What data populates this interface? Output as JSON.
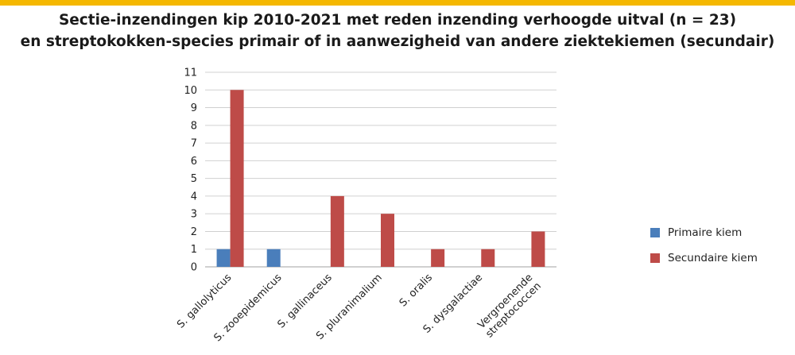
{
  "chart_data": {
    "type": "bar",
    "title": "Sectie-inzendingen kip 2010-2021 met reden inzending verhoogde uitval (n = 23)",
    "subtitle": "en streptokokken-species primair of in aanwezigheid van andere ziektekiemen (secundair)",
    "categories": [
      [
        "S. gallolyticus"
      ],
      [
        "S. zooepidemicus"
      ],
      [
        "S. gallinaceus"
      ],
      [
        "S. pluranimalium"
      ],
      [
        "S. oralis"
      ],
      [
        "S. dysgalactiae"
      ],
      [
        "Vergroenende",
        "streptococcen"
      ]
    ],
    "series": [
      {
        "name": "Primaire kiem",
        "color": "#4a7ebb",
        "values": [
          1,
          1,
          0,
          0,
          0,
          0,
          0
        ]
      },
      {
        "name": "Secundaire kiem",
        "color": "#be4b48",
        "values": [
          10,
          0,
          4,
          3,
          1,
          1,
          2
        ]
      }
    ],
    "ylim": [
      0,
      11
    ],
    "yticks": [
      "0",
      "1",
      "2",
      "3",
      "4",
      "5",
      "6",
      "7",
      "8",
      "9",
      "10",
      "11"
    ],
    "grid": true,
    "legend": "right"
  },
  "colors": {
    "accent_bar": "#f5b800"
  }
}
